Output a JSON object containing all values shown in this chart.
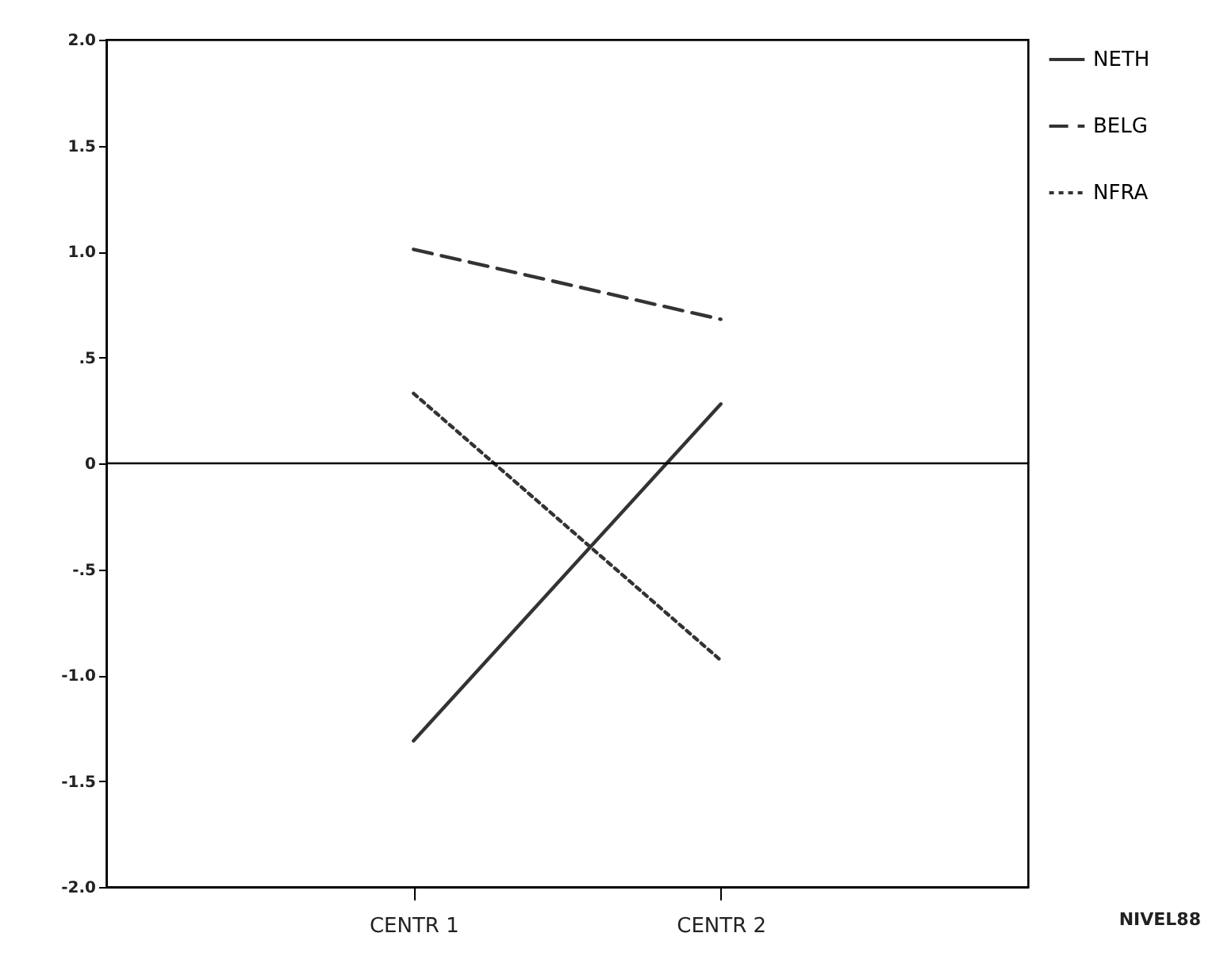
{
  "chart_data": {
    "type": "line",
    "categories": [
      "CENTR 1",
      "CENTR 2"
    ],
    "series": [
      {
        "name": "NETH",
        "color": "#333333",
        "line_style": "solid",
        "values": [
          -1.31,
          0.28
        ]
      },
      {
        "name": "BELG",
        "color": "#333333",
        "line_style": "dashed",
        "values": [
          1.01,
          0.68
        ]
      },
      {
        "name": "NFRA",
        "color": "#333333",
        "line_style": "dotted",
        "values": [
          0.33,
          -0.93
        ]
      }
    ],
    "ylim": [
      -2,
      2
    ],
    "yticks": [
      {
        "value": -2,
        "label": "-2.0"
      },
      {
        "value": -1.5,
        "label": "-1.5"
      },
      {
        "value": -1,
        "label": "-1.0"
      },
      {
        "value": -0.5,
        "label": "-.5"
      },
      0,
      {
        "value": 0.5,
        "label": ".5"
      },
      {
        "value": 1,
        "label": "1.0"
      },
      {
        "value": 1.5,
        "label": "1.5"
      },
      {
        "value": 2,
        "label": "2.0"
      }
    ],
    "ref_lines": [
      {
        "axis": "y",
        "value": 0,
        "color": "#000000"
      }
    ],
    "grid": false,
    "legend": "top right",
    "marker": "none",
    "annotations": [
      "NIVEL88"
    ]
  }
}
